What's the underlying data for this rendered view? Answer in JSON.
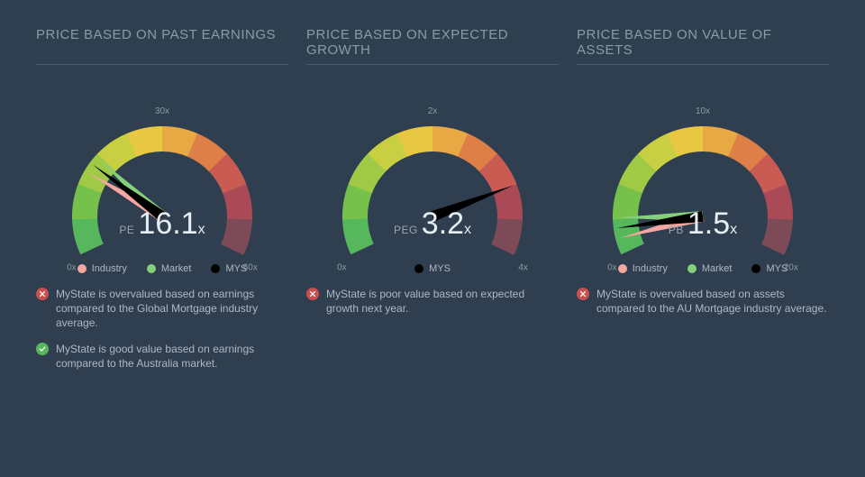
{
  "background_color": "#2f3f4f",
  "divider_color": "#4a5a6a",
  "tick_color": "#8a9aa8",
  "gradient": [
    "#56b75c",
    "#76c14c",
    "#a0ca45",
    "#c8cf42",
    "#e8c743",
    "#e8a843",
    "#dd7f47",
    "#c95b53",
    "#a94a56",
    "#7d4a58"
  ],
  "legend_colors": {
    "industry": "#f4a6a0",
    "market": "#85d07a",
    "mys": "#000000"
  },
  "panels": [
    {
      "title": "PRICE BASED ON PAST EARNINGS",
      "metric_label": "PE",
      "metric_value": "16.1",
      "min_label": "0x",
      "mid_label": "30x",
      "max_label": "60x",
      "max": 60,
      "needles": [
        {
          "value": 14.5,
          "color": "#f4a6a0"
        },
        {
          "value": 17.5,
          "color": "#85d07a"
        },
        {
          "value": 16.1,
          "color": "#000000"
        }
      ],
      "legend": [
        {
          "key": "industry",
          "label": "Industry"
        },
        {
          "key": "market",
          "label": "Market"
        },
        {
          "key": "mys",
          "label": "MYS"
        }
      ],
      "statements": [
        {
          "status": "fail",
          "text": "MyState is overvalued based on earnings compared to the Global Mortgage industry average."
        },
        {
          "status": "pass",
          "text": "MyState is good value based on earnings compared to the Australia market."
        }
      ]
    },
    {
      "title": "PRICE BASED ON EXPECTED GROWTH",
      "metric_label": "PEG",
      "metric_value": "3.2",
      "min_label": "0x",
      "mid_label": "2x",
      "max_label": "4x",
      "max": 4,
      "needles": [
        {
          "value": 3.2,
          "color": "#000000"
        }
      ],
      "legend": [
        {
          "key": "mys",
          "label": "MYS"
        }
      ],
      "statements": [
        {
          "status": "fail",
          "text": "MyState is poor value based on expected growth next year."
        }
      ]
    },
    {
      "title": "PRICE BASED ON VALUE OF ASSETS",
      "metric_label": "PB",
      "metric_value": "1.5",
      "min_label": "0x",
      "mid_label": "10x",
      "max_label": "20x",
      "max": 20,
      "needles": [
        {
          "value": 0.9,
          "color": "#f4a6a0"
        },
        {
          "value": 2.1,
          "color": "#85d07a"
        },
        {
          "value": 1.5,
          "color": "#000000"
        }
      ],
      "legend": [
        {
          "key": "industry",
          "label": "Industry"
        },
        {
          "key": "market",
          "label": "Market"
        },
        {
          "key": "mys",
          "label": "MYS"
        }
      ],
      "statements": [
        {
          "status": "fail",
          "text": "MyState is overvalued based on assets compared to the AU Mortgage industry average."
        }
      ]
    }
  ],
  "status_colors": {
    "pass": "#56b75c",
    "fail": "#c94f4f"
  }
}
